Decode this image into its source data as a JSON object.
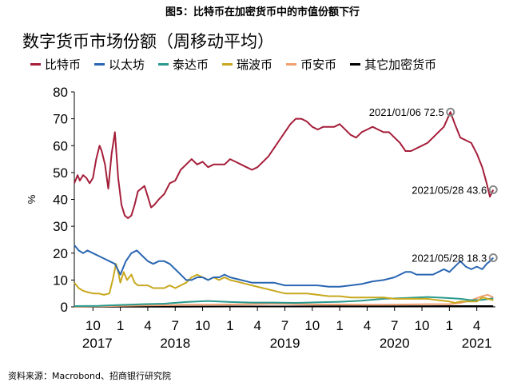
{
  "figure_title": "图5：比特币在加密货币中的市值份额下行",
  "source": "资料来源：Macrobond、招商银行研究院",
  "colors": {
    "btc": "#a51e3a",
    "eth": "#2a66b2",
    "usdt": "#2a9a8e",
    "xrp": "#c8a81e",
    "bnb": "#f0a070",
    "other": "#000000"
  },
  "chart_data": {
    "type": "line",
    "title": "数字货币市场份额（周移动平均）",
    "ylabel": "%",
    "xlabel": "",
    "ylim": [
      0,
      80
    ],
    "yticks": [
      0,
      10,
      20,
      30,
      40,
      50,
      60,
      70,
      80
    ],
    "grid": false,
    "legend_position": "top",
    "x_start": 2017.58,
    "x_end": 2021.42,
    "x_month_ticks": [
      {
        "x": 2017.75,
        "label": "10"
      },
      {
        "x": 2018.0,
        "label": "1"
      },
      {
        "x": 2018.25,
        "label": "4"
      },
      {
        "x": 2018.5,
        "label": "7"
      },
      {
        "x": 2018.75,
        "label": "10"
      },
      {
        "x": 2019.0,
        "label": "1"
      },
      {
        "x": 2019.25,
        "label": "4"
      },
      {
        "x": 2019.5,
        "label": "7"
      },
      {
        "x": 2019.75,
        "label": "10"
      },
      {
        "x": 2020.0,
        "label": "1"
      },
      {
        "x": 2020.25,
        "label": "4"
      },
      {
        "x": 2020.5,
        "label": "7"
      },
      {
        "x": 2020.75,
        "label": "10"
      },
      {
        "x": 2021.0,
        "label": "1"
      },
      {
        "x": 2021.25,
        "label": "4"
      }
    ],
    "x_year_labels": [
      {
        "x": 2017.79,
        "label": "2017"
      },
      {
        "x": 2018.5,
        "label": "2018"
      },
      {
        "x": 2019.5,
        "label": "2019"
      },
      {
        "x": 2020.5,
        "label": "2020"
      },
      {
        "x": 2021.25,
        "label": "2021"
      }
    ],
    "series": [
      {
        "name": "比特币",
        "key": "btc",
        "points": [
          [
            2017.58,
            46
          ],
          [
            2017.61,
            49
          ],
          [
            2017.63,
            47
          ],
          [
            2017.66,
            49
          ],
          [
            2017.69,
            48
          ],
          [
            2017.72,
            46
          ],
          [
            2017.75,
            48
          ],
          [
            2017.78,
            55
          ],
          [
            2017.81,
            60
          ],
          [
            2017.83,
            58
          ],
          [
            2017.86,
            53
          ],
          [
            2017.89,
            44
          ],
          [
            2017.92,
            57
          ],
          [
            2017.95,
            65
          ],
          [
            2017.98,
            48
          ],
          [
            2018.01,
            38
          ],
          [
            2018.04,
            34
          ],
          [
            2018.07,
            33
          ],
          [
            2018.1,
            34
          ],
          [
            2018.13,
            38
          ],
          [
            2018.16,
            43
          ],
          [
            2018.19,
            44
          ],
          [
            2018.22,
            45
          ],
          [
            2018.25,
            41
          ],
          [
            2018.28,
            37
          ],
          [
            2018.31,
            38
          ],
          [
            2018.35,
            40
          ],
          [
            2018.4,
            42
          ],
          [
            2018.45,
            46
          ],
          [
            2018.5,
            47
          ],
          [
            2018.55,
            51
          ],
          [
            2018.6,
            53
          ],
          [
            2018.65,
            55
          ],
          [
            2018.7,
            53
          ],
          [
            2018.75,
            54
          ],
          [
            2018.8,
            52
          ],
          [
            2018.85,
            53
          ],
          [
            2018.9,
            53
          ],
          [
            2018.95,
            53
          ],
          [
            2019.0,
            55
          ],
          [
            2019.05,
            54
          ],
          [
            2019.1,
            53
          ],
          [
            2019.15,
            52
          ],
          [
            2019.2,
            51
          ],
          [
            2019.25,
            52
          ],
          [
            2019.3,
            54
          ],
          [
            2019.35,
            56
          ],
          [
            2019.4,
            59
          ],
          [
            2019.45,
            62
          ],
          [
            2019.5,
            65
          ],
          [
            2019.55,
            68
          ],
          [
            2019.6,
            70
          ],
          [
            2019.65,
            70
          ],
          [
            2019.7,
            69
          ],
          [
            2019.75,
            67
          ],
          [
            2019.8,
            66
          ],
          [
            2019.85,
            67
          ],
          [
            2019.9,
            67
          ],
          [
            2019.95,
            67
          ],
          [
            2020.0,
            68
          ],
          [
            2020.05,
            66
          ],
          [
            2020.1,
            64
          ],
          [
            2020.15,
            63
          ],
          [
            2020.2,
            65
          ],
          [
            2020.25,
            66
          ],
          [
            2020.3,
            67
          ],
          [
            2020.35,
            66
          ],
          [
            2020.4,
            65
          ],
          [
            2020.45,
            65
          ],
          [
            2020.5,
            63
          ],
          [
            2020.55,
            61
          ],
          [
            2020.6,
            58
          ],
          [
            2020.65,
            58
          ],
          [
            2020.7,
            59
          ],
          [
            2020.75,
            60
          ],
          [
            2020.8,
            61
          ],
          [
            2020.85,
            63
          ],
          [
            2020.9,
            65
          ],
          [
            2020.95,
            67
          ],
          [
            2021.01,
            72.5
          ],
          [
            2021.05,
            68
          ],
          [
            2021.1,
            63
          ],
          [
            2021.15,
            62
          ],
          [
            2021.2,
            61
          ],
          [
            2021.25,
            57
          ],
          [
            2021.3,
            52
          ],
          [
            2021.34,
            46
          ],
          [
            2021.37,
            41
          ],
          [
            2021.4,
            43.6
          ]
        ]
      },
      {
        "name": "以太坊",
        "key": "eth",
        "points": [
          [
            2017.58,
            23
          ],
          [
            2017.62,
            21
          ],
          [
            2017.66,
            20
          ],
          [
            2017.7,
            21
          ],
          [
            2017.75,
            20
          ],
          [
            2017.8,
            19
          ],
          [
            2017.85,
            18
          ],
          [
            2017.9,
            17
          ],
          [
            2017.95,
            16
          ],
          [
            2018.0,
            12
          ],
          [
            2018.05,
            17
          ],
          [
            2018.1,
            20
          ],
          [
            2018.15,
            21
          ],
          [
            2018.2,
            19
          ],
          [
            2018.25,
            17
          ],
          [
            2018.3,
            16
          ],
          [
            2018.35,
            17
          ],
          [
            2018.4,
            17
          ],
          [
            2018.45,
            16
          ],
          [
            2018.5,
            14
          ],
          [
            2018.55,
            12
          ],
          [
            2018.6,
            10
          ],
          [
            2018.65,
            10
          ],
          [
            2018.7,
            11
          ],
          [
            2018.75,
            11
          ],
          [
            2018.8,
            10
          ],
          [
            2018.85,
            11
          ],
          [
            2018.9,
            11
          ],
          [
            2018.95,
            12
          ],
          [
            2019.0,
            11
          ],
          [
            2019.1,
            10
          ],
          [
            2019.2,
            9
          ],
          [
            2019.3,
            9
          ],
          [
            2019.4,
            9
          ],
          [
            2019.5,
            8
          ],
          [
            2019.6,
            8
          ],
          [
            2019.7,
            8
          ],
          [
            2019.8,
            8
          ],
          [
            2019.9,
            7.5
          ],
          [
            2020.0,
            7.5
          ],
          [
            2020.1,
            8
          ],
          [
            2020.2,
            8.5
          ],
          [
            2020.3,
            9.5
          ],
          [
            2020.4,
            10
          ],
          [
            2020.5,
            11
          ],
          [
            2020.55,
            12
          ],
          [
            2020.6,
            13
          ],
          [
            2020.65,
            13
          ],
          [
            2020.7,
            12
          ],
          [
            2020.75,
            12
          ],
          [
            2020.8,
            12
          ],
          [
            2020.85,
            12
          ],
          [
            2020.9,
            13
          ],
          [
            2020.95,
            14
          ],
          [
            2021.0,
            13
          ],
          [
            2021.05,
            15
          ],
          [
            2021.1,
            17
          ],
          [
            2021.15,
            15
          ],
          [
            2021.2,
            14
          ],
          [
            2021.25,
            15
          ],
          [
            2021.3,
            14
          ],
          [
            2021.34,
            16
          ],
          [
            2021.37,
            17
          ],
          [
            2021.4,
            18.3
          ]
        ]
      },
      {
        "name": "泰达币",
        "key": "usdt",
        "points": [
          [
            2017.58,
            0.3
          ],
          [
            2017.8,
            0.4
          ],
          [
            2018.0,
            0.7
          ],
          [
            2018.2,
            1.0
          ],
          [
            2018.4,
            1.2
          ],
          [
            2018.6,
            1.8
          ],
          [
            2018.8,
            2.2
          ],
          [
            2019.0,
            1.8
          ],
          [
            2019.2,
            1.6
          ],
          [
            2019.4,
            1.6
          ],
          [
            2019.6,
            1.5
          ],
          [
            2019.8,
            1.7
          ],
          [
            2020.0,
            1.9
          ],
          [
            2020.2,
            2.3
          ],
          [
            2020.4,
            3.0
          ],
          [
            2020.6,
            3.3
          ],
          [
            2020.8,
            3.7
          ],
          [
            2020.95,
            3.4
          ],
          [
            2021.1,
            3.0
          ],
          [
            2021.2,
            2.5
          ],
          [
            2021.3,
            2.6
          ],
          [
            2021.4,
            3.2
          ]
        ]
      },
      {
        "name": "瑞波币",
        "key": "xrp",
        "points": [
          [
            2017.58,
            9
          ],
          [
            2017.62,
            7
          ],
          [
            2017.66,
            6
          ],
          [
            2017.7,
            5.5
          ],
          [
            2017.75,
            5
          ],
          [
            2017.8,
            5
          ],
          [
            2017.85,
            4.5
          ],
          [
            2017.9,
            5
          ],
          [
            2017.93,
            10
          ],
          [
            2017.96,
            16
          ],
          [
            2017.98,
            13
          ],
          [
            2018.0,
            9
          ],
          [
            2018.03,
            13
          ],
          [
            2018.06,
            10
          ],
          [
            2018.1,
            12
          ],
          [
            2018.13,
            9
          ],
          [
            2018.16,
            8
          ],
          [
            2018.2,
            8
          ],
          [
            2018.25,
            8
          ],
          [
            2018.3,
            7
          ],
          [
            2018.35,
            7
          ],
          [
            2018.4,
            7
          ],
          [
            2018.45,
            8
          ],
          [
            2018.5,
            7
          ],
          [
            2018.55,
            8
          ],
          [
            2018.6,
            9
          ],
          [
            2018.65,
            11
          ],
          [
            2018.7,
            12
          ],
          [
            2018.75,
            11
          ],
          [
            2018.8,
            10
          ],
          [
            2018.85,
            11
          ],
          [
            2018.9,
            10
          ],
          [
            2018.95,
            11
          ],
          [
            2019.0,
            10
          ],
          [
            2019.1,
            9
          ],
          [
            2019.2,
            8
          ],
          [
            2019.3,
            7
          ],
          [
            2019.4,
            6
          ],
          [
            2019.5,
            5
          ],
          [
            2019.6,
            5
          ],
          [
            2019.7,
            5
          ],
          [
            2019.8,
            4.5
          ],
          [
            2019.9,
            4
          ],
          [
            2020.0,
            4
          ],
          [
            2020.1,
            3.5
          ],
          [
            2020.2,
            3.5
          ],
          [
            2020.3,
            3.5
          ],
          [
            2020.4,
            3.5
          ],
          [
            2020.5,
            3
          ],
          [
            2020.6,
            3
          ],
          [
            2020.7,
            3
          ],
          [
            2020.8,
            3
          ],
          [
            2020.9,
            2.5
          ],
          [
            2021.0,
            2
          ],
          [
            2021.05,
            1.5
          ],
          [
            2021.1,
            2
          ],
          [
            2021.15,
            2
          ],
          [
            2021.2,
            2
          ],
          [
            2021.25,
            2
          ],
          [
            2021.3,
            3.5
          ],
          [
            2021.35,
            3
          ],
          [
            2021.4,
            2.5
          ]
        ]
      },
      {
        "name": "币安币",
        "key": "bnb",
        "points": [
          [
            2017.58,
            0.1
          ],
          [
            2017.8,
            0.2
          ],
          [
            2018.0,
            0.4
          ],
          [
            2018.2,
            0.5
          ],
          [
            2018.4,
            0.6
          ],
          [
            2018.6,
            0.8
          ],
          [
            2018.8,
            0.8
          ],
          [
            2019.0,
            0.9
          ],
          [
            2019.2,
            1.0
          ],
          [
            2019.4,
            1.2
          ],
          [
            2019.6,
            1.0
          ],
          [
            2019.8,
            0.9
          ],
          [
            2020.0,
            0.9
          ],
          [
            2020.2,
            0.8
          ],
          [
            2020.4,
            0.8
          ],
          [
            2020.6,
            0.9
          ],
          [
            2020.8,
            1.0
          ],
          [
            2021.0,
            1.0
          ],
          [
            2021.1,
            1.5
          ],
          [
            2021.2,
            2.5
          ],
          [
            2021.3,
            4.0
          ],
          [
            2021.35,
            4.5
          ],
          [
            2021.4,
            3.5
          ]
        ]
      },
      {
        "name": "其它加密货币",
        "key": "other",
        "points": [
          [
            2017.58,
            0.05
          ],
          [
            2018.0,
            0.1
          ],
          [
            2018.5,
            0.1
          ],
          [
            2019.0,
            0.15
          ],
          [
            2019.5,
            0.15
          ],
          [
            2020.0,
            0.2
          ],
          [
            2020.5,
            0.2
          ],
          [
            2021.0,
            0.3
          ],
          [
            2021.4,
            0.3
          ]
        ]
      }
    ],
    "annotations": [
      {
        "x": 2021.01,
        "y": 72.5,
        "label": "2021/01/06 72.5",
        "series": "btc"
      },
      {
        "x": 2021.4,
        "y": 43.6,
        "label": "2021/05/28 43.6",
        "series": "btc"
      },
      {
        "x": 2021.4,
        "y": 18.3,
        "label": "2021/05/28 18.3",
        "series": "eth"
      }
    ]
  }
}
